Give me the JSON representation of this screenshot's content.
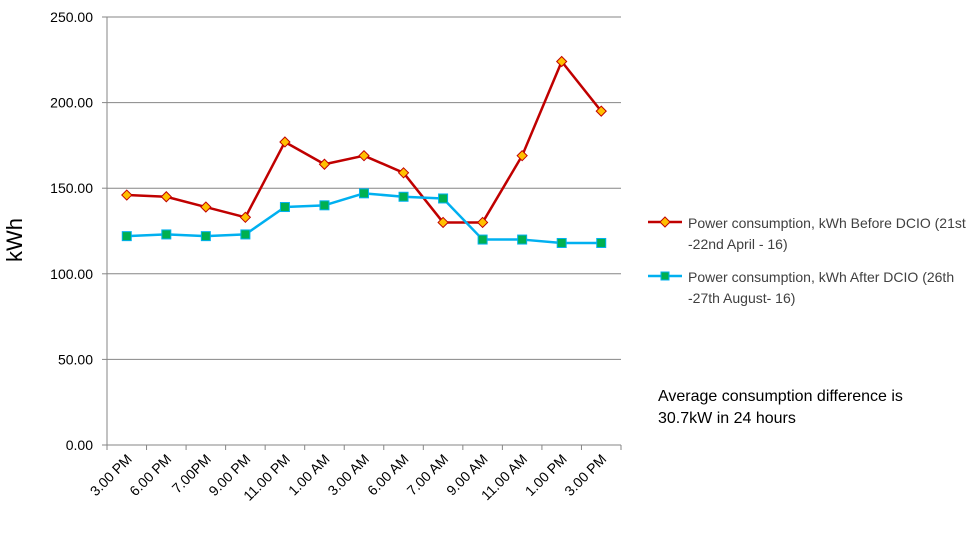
{
  "chart_data": {
    "type": "line",
    "ylabel": "kWh",
    "xlabel": "",
    "ylim": [
      0,
      250
    ],
    "yticks": [
      "0.00",
      "50.00",
      "100.00",
      "150.00",
      "200.00",
      "250.00"
    ],
    "grid": true,
    "legend_position": "right",
    "categories": [
      "3.00 PM",
      "6.00 PM",
      "7.00PM",
      "9.00 PM",
      "11.00 PM",
      "1.00 AM",
      "3.00 AM",
      "6.00 AM",
      "7.00 AM",
      "9.00 AM",
      "11.00 AM",
      "1.00 PM",
      "3.00 PM"
    ],
    "series": [
      {
        "name": "Power consumption, kWh Before DCIO (21st -22nd April - 16)",
        "color": "#C00000",
        "marker_color": "#FFC000",
        "marker": "diamond",
        "values": [
          146,
          145,
          139,
          133,
          177,
          164,
          169,
          159,
          130,
          130,
          169,
          224,
          195
        ]
      },
      {
        "name": "Power consumption, kWh After DCIO (26th -27th August- 16)",
        "color": "#00B0F0",
        "marker_color": "#00B050",
        "marker": "square",
        "values": [
          122,
          123,
          122,
          123,
          139,
          140,
          147,
          145,
          144,
          120,
          120,
          118,
          118
        ]
      }
    ]
  },
  "note": {
    "line1": "Average consumption difference  is",
    "line2": "30.7kW in 24 hours"
  }
}
